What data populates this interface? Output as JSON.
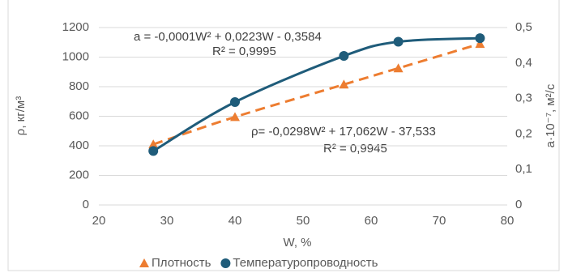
{
  "chart_data": {
    "type": "scatter",
    "x_label": "W, %",
    "y_label": "ρ, кг/м³",
    "y2_label": "a·10⁻⁷, м²/с",
    "x": [
      28,
      40,
      56,
      64,
      76
    ],
    "series": [
      {
        "name": "Плотность",
        "color": "#ed7d31",
        "marker": "triangle",
        "trendline": "dashed",
        "values": [
          410,
          595,
          815,
          925,
          1090
        ]
      },
      {
        "name": "Температуропроводность",
        "color": "#1f5c7a",
        "marker": "circle",
        "trendline": "solid",
        "axis": "y2",
        "values": [
          0.152,
          0.29,
          0.42,
          0.46,
          0.47
        ]
      }
    ],
    "xlim": [
      20,
      80
    ],
    "xticks": [
      20,
      30,
      40,
      50,
      60,
      70,
      80
    ],
    "ylim": [
      0,
      1200
    ],
    "yticks": [
      0,
      200,
      400,
      600,
      800,
      1000,
      1200
    ],
    "y2lim": [
      0,
      0.5
    ],
    "y2ticks": [
      {
        "value": 0,
        "label": "0"
      },
      {
        "value": 0.1,
        "label": "0,1"
      },
      {
        "value": 0.2,
        "label": "0,2"
      },
      {
        "value": 0.3,
        "label": "0,3"
      },
      {
        "value": 0.4,
        "label": "0,4"
      },
      {
        "value": 0.5,
        "label": "0,5"
      }
    ],
    "grid": true,
    "legend": "bottom",
    "annotations": [
      "a = -0,0001W² + 0,0223W - 0,3584",
      "R² = 0,9995",
      "ρ= -0,0298W² + 17,062W - 37,533",
      "R² = 0,9945"
    ]
  }
}
